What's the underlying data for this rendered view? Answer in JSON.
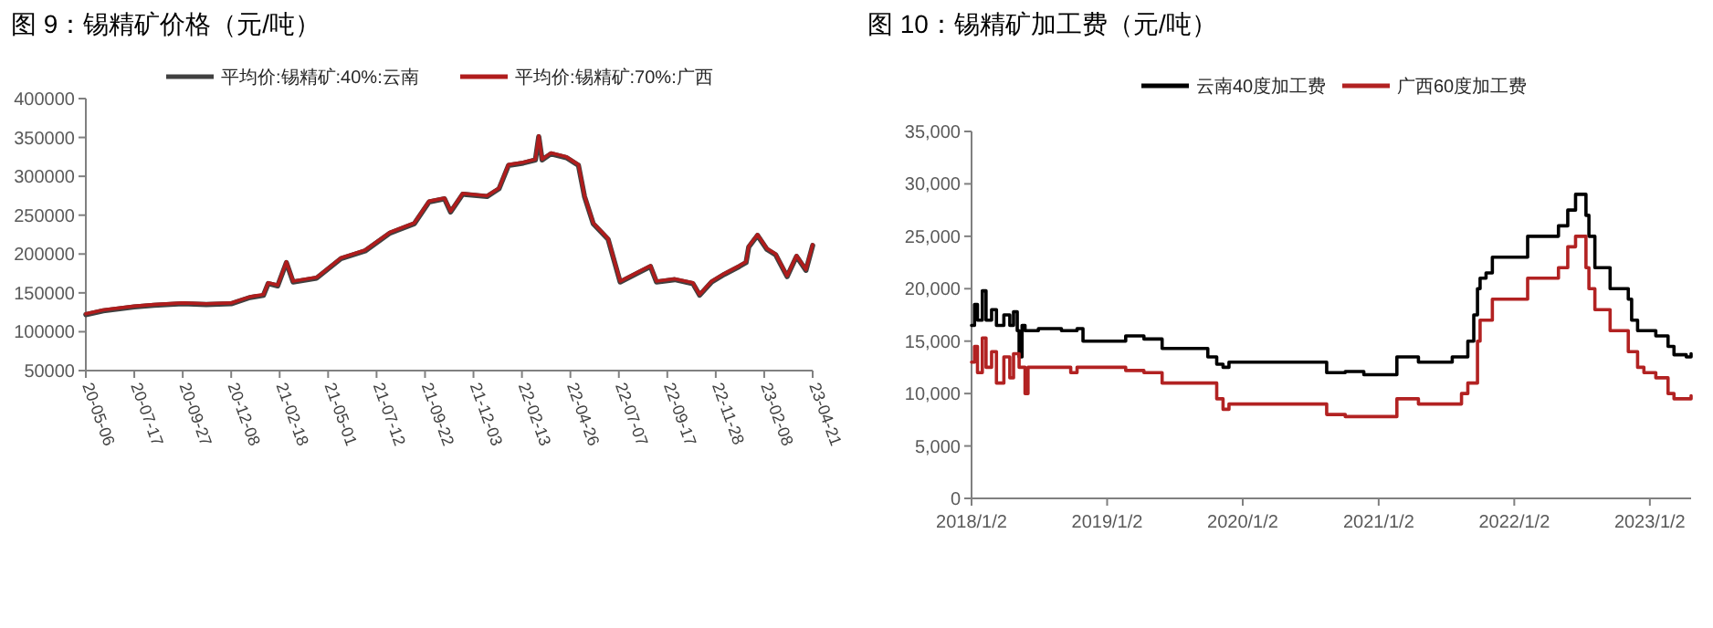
{
  "chart_data": [
    {
      "type": "line",
      "title": "图 9：锡精矿价格（元/吨）",
      "legend": "top",
      "x": [
        "2020-05-06",
        "2020-06-01",
        "2020-07-17",
        "2020-08-15",
        "2020-09-27",
        "2020-11-01",
        "2020-12-08",
        "2021-01-05",
        "2021-01-25",
        "2021-02-01",
        "2021-02-15",
        "2021-02-28",
        "2021-03-10",
        "2021-04-14",
        "2021-05-20",
        "2021-06-25",
        "2021-08-01",
        "2021-09-06",
        "2021-09-28",
        "2021-10-21",
        "2021-10-30",
        "2021-11-17",
        "2021-12-23",
        "2022-01-10",
        "2022-01-24",
        "2022-02-15",
        "2022-03-05",
        "2022-03-10",
        "2022-03-15",
        "2022-03-28",
        "2022-04-20",
        "2022-05-08",
        "2022-05-17",
        "2022-05-30",
        "2022-06-21",
        "2022-07-09",
        "2022-08-05",
        "2022-08-23",
        "2022-09-01",
        "2022-09-28",
        "2022-10-25",
        "2022-11-04",
        "2022-11-22",
        "2022-12-11",
        "2023-01-02",
        "2023-01-12",
        "2023-01-16",
        "2023-01-29",
        "2023-02-12",
        "2023-02-25",
        "2023-03-14",
        "2023-03-28",
        "2023-04-11",
        "2023-04-21"
      ],
      "series": [
        {
          "name": "平均价:锡精矿:40%:云南",
          "color": "#404040",
          "values": [
            122000,
            127000,
            132000,
            134000,
            136000,
            135000,
            136000,
            144000,
            147000,
            162000,
            159000,
            189000,
            164000,
            169000,
            194000,
            204000,
            227000,
            239000,
            267000,
            271000,
            254000,
            277000,
            274000,
            284000,
            314000,
            317000,
            321000,
            351000,
            321000,
            329000,
            324000,
            314000,
            274000,
            239000,
            219000,
            164000,
            176000,
            184000,
            164000,
            167000,
            162000,
            147000,
            164000,
            174000,
            184000,
            189000,
            209000,
            224000,
            206000,
            199000,
            171000,
            197000,
            179000,
            211000
          ]
        },
        {
          "name": "平均价:锡精矿:70%:广西",
          "color": "#b01c1c",
          "values": [
            123000,
            128000,
            133000,
            135000,
            137000,
            136000,
            137000,
            145000,
            148000,
            163000,
            160000,
            190000,
            165000,
            170000,
            195000,
            205000,
            228000,
            240000,
            268000,
            272000,
            255000,
            278000,
            275000,
            285000,
            315000,
            318000,
            322000,
            352000,
            322000,
            330000,
            325000,
            315000,
            275000,
            240000,
            220000,
            165000,
            177000,
            185000,
            165000,
            168000,
            163000,
            148000,
            165000,
            175000,
            185000,
            190000,
            210000,
            225000,
            207000,
            200000,
            172000,
            198000,
            180000,
            212000
          ]
        }
      ],
      "xlim": [
        "2020-05-06",
        "2023-04-21"
      ],
      "xticks": [
        {
          "value": "2020-05-06",
          "label": "20-05-06"
        },
        {
          "value": "2020-07-17",
          "label": "20-07-17"
        },
        {
          "value": "2020-09-27",
          "label": "20-09-27"
        },
        {
          "value": "2020-12-08",
          "label": "20-12-08"
        },
        {
          "value": "2021-02-18",
          "label": "21-02-18"
        },
        {
          "value": "2021-05-01",
          "label": "21-05-01"
        },
        {
          "value": "2021-07-12",
          "label": "21-07-12"
        },
        {
          "value": "2021-09-22",
          "label": "21-09-22"
        },
        {
          "value": "2021-12-03",
          "label": "21-12-03"
        },
        {
          "value": "2022-02-13",
          "label": "22-02-13"
        },
        {
          "value": "2022-04-26",
          "label": "22-04-26"
        },
        {
          "value": "2022-07-07",
          "label": "22-07-07"
        },
        {
          "value": "2022-09-17",
          "label": "22-09-17"
        },
        {
          "value": "2022-11-28",
          "label": "22-11-28"
        },
        {
          "value": "2023-02-08",
          "label": "23-02-08"
        },
        {
          "value": "2023-04-21",
          "label": "23-04-21"
        }
      ],
      "ylim": [
        50000,
        400000
      ],
      "yticks": [
        50000,
        100000,
        150000,
        200000,
        250000,
        300000,
        350000,
        400000
      ]
    },
    {
      "type": "step",
      "title": "图 10：锡精矿加工费（元/吨）",
      "legend": "top",
      "series": [
        {
          "name": "云南40度加工费",
          "color": "#000000",
          "x": [
            "2018-01-02",
            "2018-01-10",
            "2018-01-18",
            "2018-01-31",
            "2018-02-10",
            "2018-02-25",
            "2018-03-10",
            "2018-03-30",
            "2018-04-15",
            "2018-04-25",
            "2018-05-05",
            "2018-05-10",
            "2018-05-18",
            "2018-05-26",
            "2018-07-01",
            "2018-09-01",
            "2018-10-13",
            "2018-10-29",
            "2019-02-21",
            "2019-04-11",
            "2019-05-30",
            "2019-09-30",
            "2019-10-24",
            "2019-11-10",
            "2019-11-26",
            "2020-08-15",
            "2020-10-04",
            "2020-11-23",
            "2021-02-20",
            "2021-04-19",
            "2021-07-19",
            "2021-08-30",
            "2021-09-15",
            "2021-09-25",
            "2021-10-02",
            "2021-10-18",
            "2021-11-04",
            "2022-02-07",
            "2022-05-01",
            "2022-05-26",
            "2022-06-16",
            "2022-07-14",
            "2022-07-22",
            "2022-08-07",
            "2022-09-17",
            "2022-11-05",
            "2022-11-14",
            "2022-11-30",
            "2023-01-18",
            "2023-02-20",
            "2023-03-08",
            "2023-04-10",
            "2023-04-23"
          ],
          "values": [
            16500,
            18500,
            17000,
            19800,
            17000,
            18000,
            16500,
            17500,
            16500,
            17800,
            16000,
            13500,
            16500,
            16000,
            16200,
            16000,
            16200,
            15000,
            15500,
            15200,
            14300,
            13500,
            12800,
            12500,
            13000,
            12000,
            12100,
            11800,
            13500,
            13000,
            13500,
            15000,
            17500,
            20000,
            21000,
            21500,
            23000,
            25000,
            26000,
            27500,
            29000,
            27000,
            25000,
            22000,
            20000,
            19000,
            17000,
            16000,
            15500,
            14500,
            13700,
            13500,
            13800
          ]
        },
        {
          "name": "广西60度加工费",
          "color": "#b22222",
          "x": [
            "2018-01-02",
            "2018-01-10",
            "2018-01-18",
            "2018-01-31",
            "2018-02-10",
            "2018-02-25",
            "2018-03-10",
            "2018-03-30",
            "2018-04-15",
            "2018-04-25",
            "2018-05-10",
            "2018-05-26",
            "2018-06-03",
            "2018-09-26",
            "2018-10-13",
            "2019-02-21",
            "2019-04-11",
            "2019-05-30",
            "2019-10-24",
            "2019-11-10",
            "2019-11-26",
            "2020-08-15",
            "2020-10-04",
            "2021-02-20",
            "2021-04-19",
            "2021-08-13",
            "2021-08-30",
            "2021-09-25",
            "2021-10-02",
            "2021-11-04",
            "2022-02-07",
            "2022-05-01",
            "2022-05-26",
            "2022-06-16",
            "2022-07-14",
            "2022-07-22",
            "2022-08-07",
            "2022-09-17",
            "2022-11-05",
            "2022-11-30",
            "2022-12-17",
            "2023-01-18",
            "2023-02-20",
            "2023-03-08",
            "2023-04-10",
            "2023-04-23"
          ],
          "values": [
            13000,
            14500,
            12000,
            15300,
            12500,
            14000,
            11000,
            13500,
            11500,
            13800,
            12500,
            10000,
            12500,
            12000,
            12500,
            12200,
            12000,
            11000,
            9500,
            8500,
            9000,
            8000,
            7800,
            9500,
            9000,
            10000,
            11000,
            15000,
            17000,
            19000,
            21000,
            22000,
            24000,
            25000,
            22000,
            20000,
            18000,
            16000,
            14000,
            12500,
            12000,
            11500,
            10000,
            9500,
            9500,
            9800
          ]
        }
      ],
      "xlim": [
        "2018-01-02",
        "2023-04-23"
      ],
      "xticks": [
        {
          "value": "2018-01-02",
          "label": "2018/1/2"
        },
        {
          "value": "2019-01-02",
          "label": "2019/1/2"
        },
        {
          "value": "2020-01-02",
          "label": "2020/1/2"
        },
        {
          "value": "2021-01-02",
          "label": "2021/1/2"
        },
        {
          "value": "2022-01-02",
          "label": "2022/1/2"
        },
        {
          "value": "2023-01-02",
          "label": "2023/1/2"
        }
      ],
      "ylim": [
        0,
        35000
      ],
      "yticks": [
        {
          "value": 0,
          "label": "0"
        },
        {
          "value": 5000,
          "label": "5,000"
        },
        {
          "value": 10000,
          "label": "10,000"
        },
        {
          "value": 15000,
          "label": "15,000"
        },
        {
          "value": 20000,
          "label": "20,000"
        },
        {
          "value": 25000,
          "label": "25,000"
        },
        {
          "value": 30000,
          "label": "30,000"
        },
        {
          "value": 35000,
          "label": "35,000"
        }
      ]
    }
  ]
}
